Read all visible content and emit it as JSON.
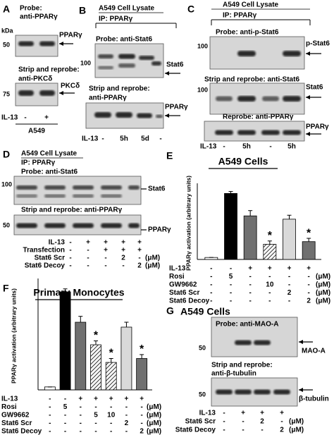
{
  "panels": {
    "A": {
      "letter": "A",
      "probe": "Probe:",
      "probe_antibody": "anti-PPARγ",
      "kda": "kDa",
      "marker_1": "50",
      "band_1": "PPARγ",
      "reprobe": "Strip and reprobe:",
      "reprobe_antibody": "anti-PKCδ",
      "marker_2": "75",
      "band_2": "PKCδ",
      "row_label": "IL-13",
      "lanes": [
        "-",
        "+"
      ],
      "cell_line": "A549"
    },
    "B": {
      "letter": "B",
      "lysate": "A549 Cell Lysate",
      "ip": "IP: PPARγ",
      "probe": "Probe: anti-Stat6",
      "marker_1": "100",
      "band_1": "Stat6",
      "reprobe": "Strip and reprobe:",
      "reprobe_antibody": "anti-PPARγ",
      "band_2": "PPARγ",
      "row_label": "IL-13",
      "lanes": [
        "-",
        "5h",
        "5d",
        "-"
      ]
    },
    "C": {
      "letter": "C",
      "lysate": "A549 Cell Lysate",
      "ip": "IP: PPARγ",
      "probe": "Probe: anti-p-Stat6",
      "marker_1": "100",
      "band_1": "p-Stat6",
      "reprobe_1": "Strip and reprobe: anti-Stat6",
      "marker_2": "100",
      "band_2": "Stat6",
      "reprobe_2": "Reprobe: anti-PPARγ",
      "band_3": "PPARγ",
      "row_label": "IL-13",
      "lanes": [
        "-",
        "5h",
        "-",
        "5h"
      ]
    },
    "D": {
      "letter": "D",
      "lysate": "A549 Cell Lysate",
      "ip": "IP: PPARγ",
      "probe": "Probe: anti-Stat6",
      "marker_1": "100",
      "band_1": "Stat6",
      "reprobe": "Strip and reprobe: anti-PPARγ",
      "marker_2": "50",
      "band_2": "PPARγ",
      "conditions": [
        {
          "name": "IL-13",
          "lanes": [
            "-",
            "+",
            "+",
            "+",
            "+"
          ]
        },
        {
          "name": "Transfection",
          "lanes": [
            "-",
            "-",
            "+",
            "+",
            "+"
          ]
        },
        {
          "name": "Stat6 Scr",
          "lanes": [
            "-",
            "-",
            "-",
            "2",
            "-"
          ],
          "unit": "(μM)"
        },
        {
          "name": "Stat6 Decoy",
          "lanes": [
            "-",
            "-",
            "-",
            "-",
            "2"
          ],
          "unit": "(μM)"
        }
      ]
    },
    "G": {
      "letter": "G",
      "title": "A549 Cells",
      "probe": "Probe: anti-MAO-A",
      "marker_1": "50",
      "band_1": "MAO-A",
      "reprobe": "Strip and reprobe:",
      "reprobe_antibody": "anti-β-tubulin",
      "marker_2": "50",
      "band_2": "β-tubulin",
      "conditions": [
        {
          "name": "IL-13",
          "lanes": [
            "-",
            "+",
            "+",
            "+"
          ]
        },
        {
          "name": "Stat6 Scr",
          "lanes": [
            "-",
            "-",
            "2",
            "-"
          ],
          "unit": "(μM)"
        },
        {
          "name": "Stat6 Decoy",
          "lanes": [
            "-",
            "-",
            "-",
            "2"
          ],
          "unit": "(μM)"
        }
      ]
    }
  },
  "chart_data": [
    {
      "type": "bar",
      "panel": "E",
      "title": "A549 Cells",
      "ylabel": "PPARγ activation (arbitrary units)",
      "ylim": [
        0,
        110
      ],
      "values": [
        3,
        100,
        66,
        23,
        61,
        27
      ],
      "errors": [
        0,
        3,
        8,
        5,
        6,
        5
      ],
      "colors": [
        "#ffffff",
        "#000000",
        "#707070",
        "#ffffff",
        "#d9d9d9",
        "#707070"
      ],
      "patterns": [
        "solid",
        "solid",
        "solid",
        "hatch",
        "solid",
        "solid"
      ],
      "markers": [
        null,
        null,
        null,
        "*",
        null,
        "*"
      ],
      "conditions": [
        {
          "name": "IL-13",
          "lanes": [
            "-",
            "-",
            "+",
            "+",
            "+",
            "+"
          ]
        },
        {
          "name": "Rosi",
          "lanes": [
            "-",
            "5",
            "-",
            "-",
            "-",
            "-"
          ],
          "unit": "(μM)"
        },
        {
          "name": "GW9662",
          "lanes": [
            "-",
            "-",
            "-",
            "10",
            "-",
            "-"
          ],
          "unit": "(μM)"
        },
        {
          "name": "Stat6 Scr",
          "lanes": [
            "-",
            "-",
            "-",
            "-",
            "2",
            "-"
          ],
          "unit": "(μM)"
        },
        {
          "name": "Stat6 Decoy",
          "lanes": [
            "-",
            "-",
            "-",
            "-",
            "-",
            "2"
          ],
          "unit": "(μM)"
        }
      ]
    },
    {
      "type": "bar",
      "panel": "F",
      "title": "Primary Monocytes",
      "ylabel": "PPARγ activation (arbitrary units)",
      "ylim": [
        0,
        110
      ],
      "values": [
        3,
        100,
        69,
        46,
        28,
        64,
        32
      ],
      "errors": [
        0,
        3,
        6,
        4,
        4,
        5,
        4
      ],
      "colors": [
        "#ffffff",
        "#000000",
        "#707070",
        "#ffffff",
        "#ffffff",
        "#d9d9d9",
        "#707070"
      ],
      "patterns": [
        "solid",
        "solid",
        "solid",
        "hatch",
        "hatch",
        "solid",
        "solid"
      ],
      "markers": [
        null,
        null,
        null,
        "*",
        "*",
        null,
        "*"
      ],
      "conditions": [
        {
          "name": "IL-13",
          "lanes": [
            "-",
            "-",
            "+",
            "+",
            "+",
            "+",
            "+"
          ]
        },
        {
          "name": "Rosi",
          "lanes": [
            "-",
            "5",
            "-",
            "-",
            "-",
            "-",
            "-"
          ],
          "unit": "(μM)"
        },
        {
          "name": "GW9662",
          "lanes": [
            "-",
            "-",
            "-",
            "5",
            "10",
            "-",
            "-"
          ],
          "unit": "(μM)"
        },
        {
          "name": "Stat6 Scr",
          "lanes": [
            "-",
            "-",
            "-",
            "-",
            "-",
            "2",
            "-"
          ],
          "unit": "(μM)"
        },
        {
          "name": "Stat6 Decoy",
          "lanes": [
            "-",
            "-",
            "-",
            "-",
            "-",
            "-",
            "2"
          ],
          "unit": "(μM)"
        }
      ]
    }
  ]
}
